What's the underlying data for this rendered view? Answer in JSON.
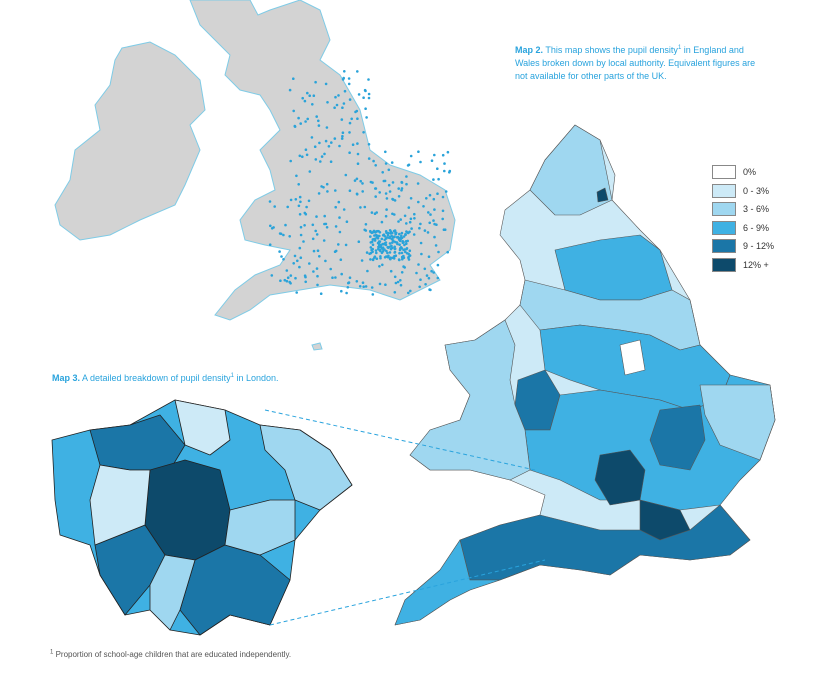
{
  "map2_caption": {
    "label": "Map 2.",
    "text_before": "This map shows the pupil density",
    "sup": "1",
    "text_after": "in England and Wales broken down by local authority. Equivalent figures are not available for other parts of the UK."
  },
  "legend": {
    "items": [
      {
        "label": "0%",
        "color": "#ffffff"
      },
      {
        "label": "0 - 3%",
        "color": "#cdeaf7"
      },
      {
        "label": "3 - 6%",
        "color": "#9fd7f0"
      },
      {
        "label": "6 - 9%",
        "color": "#3fb1e3"
      },
      {
        "label": "9 - 12%",
        "color": "#1b76a7"
      },
      {
        "label": "12% +",
        "color": "#0d4a6b"
      }
    ]
  },
  "map3_caption": {
    "label": "Map 3.",
    "text_before": "A detailed breakdown of pupil density",
    "sup": "1",
    "text_after": "in London."
  },
  "footnote": {
    "sup": "1",
    "text": "Proportion of school-age children that are educated independently."
  }
}
